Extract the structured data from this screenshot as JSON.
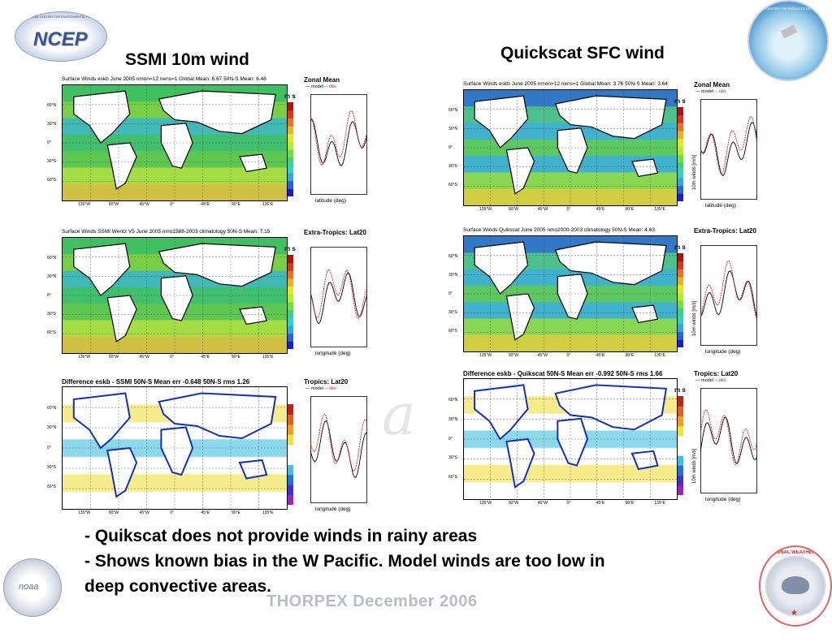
{
  "header": {
    "ncep_logo_text": "NCEP",
    "ncep_ring_text": "NATIONAL CENTERS FOR ENVIRONMENTAL PREDICTION",
    "jcsda_logo_text": "JOINT CENTER FOR SATELLITE DATA ASSIMILATION",
    "left_title": "SSMI 10m wind",
    "right_title": "Quickscat SFC wind"
  },
  "panels": [
    {
      "id": "ssmi-zonal",
      "title": "Surface Winds  eskb  June 2005 nmon=12 nens=1   Global Mean: 6.67 50N-S Mean: 6.46",
      "big": false,
      "side_title": "Zonal Mean",
      "xlabel": "latitude (deg)",
      "ylabel": "",
      "unit": "m s",
      "legend_model": "model",
      "legend_obs": "obs"
    },
    {
      "id": "ssmi-extra",
      "title": "Surface Winds  SSMI Wentz V5  June 2005 nmo1988-2003 climatology  50N-S Mean: 7.15",
      "big": false,
      "side_title": "Extra-Tropics: Lat20",
      "xlabel": "longitude (deg)",
      "ylabel": "",
      "unit": "m s",
      "legend_model": "",
      "legend_obs": ""
    },
    {
      "id": "ssmi-diff",
      "title": "Difference  eskb - SSMI  50N-S Mean err -0.648 50N-S rms 1.26",
      "big": true,
      "side_title": "Tropics: Lat20",
      "xlabel": "longitude (deg)",
      "ylabel": "",
      "unit": "",
      "legend_model": "model",
      "legend_obs": "obs"
    },
    {
      "id": "qs-zonal",
      "title": "Surface Winds  eskb  June 2005 nmon=12 nens=1   Global Mean: 3.76 50N-S Mean: 3.64",
      "big": false,
      "side_title": "Zonal Mean",
      "xlabel": "latitude (deg)",
      "ylabel": "10m winds [m/s]",
      "unit": "m s",
      "legend_model": "model",
      "legend_obs": "obs"
    },
    {
      "id": "qs-extra",
      "title": "Surface Winds  Quikscat  June 2005 nmo2000-2003 climatology  50N-S Mean: 4.63",
      "big": false,
      "side_title": "Extra-Tropics: Lat20",
      "xlabel": "longitude (deg)",
      "ylabel": "10m winds [m/s]",
      "unit": "m s",
      "legend_model": "",
      "legend_obs": ""
    },
    {
      "id": "qs-diff",
      "title": "Difference  eskb - Quikscat  50N-S Mean err -0.992 50N-S rms 1.66",
      "big": true,
      "side_title": "Tropics: Lat20",
      "xlabel": "longitude (deg)",
      "ylabel": "10m winds [m/s]",
      "unit": "m s",
      "legend_model": "model",
      "legend_obs": "obs"
    }
  ],
  "lat_labels": [
    "60°N",
    "30°N",
    "0°",
    "30°S",
    "60°S"
  ],
  "lon_labels": [
    "135°W",
    "90°W",
    "45°W",
    "0°",
    "45°E",
    "90°E",
    "135°E"
  ],
  "watermark": "a",
  "bullets": [
    "- Quikscat does not provide winds in rainy areas",
    "- Shows known bias in the W Pacific. Model winds are too low in",
    "deep convective areas."
  ],
  "footer": "THORPEX December 2006",
  "footer_logos": {
    "noaa": "noaa",
    "nws_text": "NATIONAL WEATHER SERVICE"
  },
  "colors": {
    "model_line": "#000000",
    "obs_line": "#d42020",
    "footer_text": "#b8bcc8"
  }
}
